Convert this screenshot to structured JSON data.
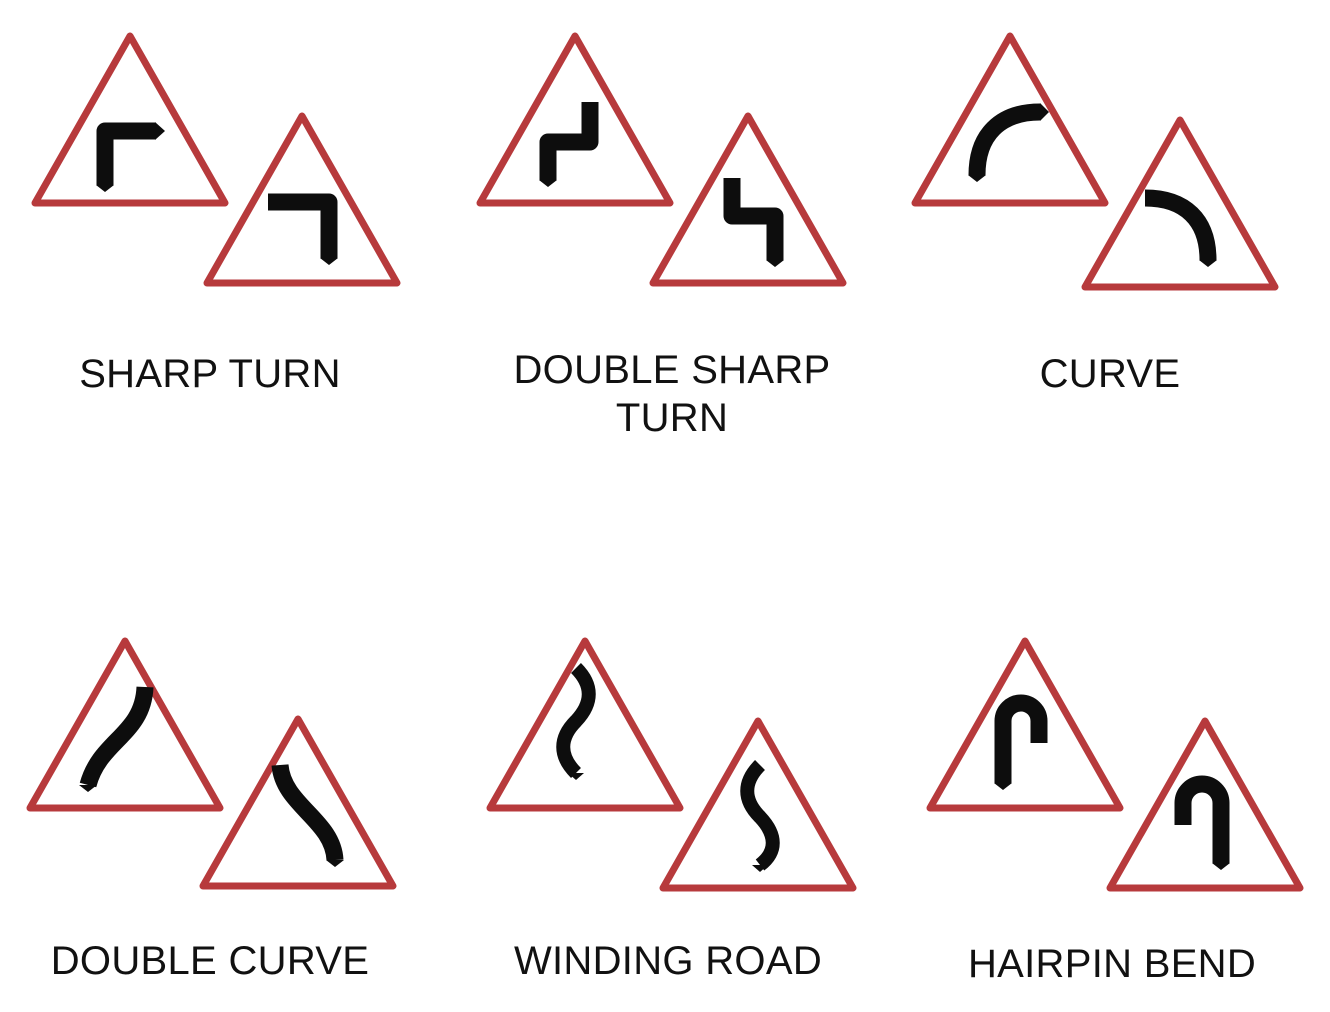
{
  "colors": {
    "border": "#b73a3c",
    "fill": "#ffffff",
    "symbol": "#0d0d0d",
    "text": "#111111"
  },
  "signs": [
    {
      "id": "sharp",
      "caption": "SHARP TURN",
      "symbols": [
        "sharp-right-turn-icon",
        "sharp-left-turn-icon"
      ]
    },
    {
      "id": "dsharp",
      "caption": "DOUBLE SHARP\nTURN",
      "symbols": [
        "double-sharp-turn-right-first-icon",
        "double-sharp-turn-left-first-icon"
      ]
    },
    {
      "id": "curve",
      "caption": "CURVE",
      "symbols": [
        "right-curve-icon",
        "left-curve-icon"
      ]
    },
    {
      "id": "dcurve",
      "caption": "DOUBLE CURVE",
      "symbols": [
        "double-curve-right-first-icon",
        "double-curve-left-first-icon"
      ]
    },
    {
      "id": "winding",
      "caption": "WINDING ROAD",
      "symbols": [
        "winding-road-left-first-icon",
        "winding-road-right-first-icon"
      ]
    },
    {
      "id": "hairpin",
      "caption": "HAIRPIN BEND",
      "symbols": [
        "hairpin-right-icon",
        "hairpin-left-icon"
      ]
    }
  ]
}
